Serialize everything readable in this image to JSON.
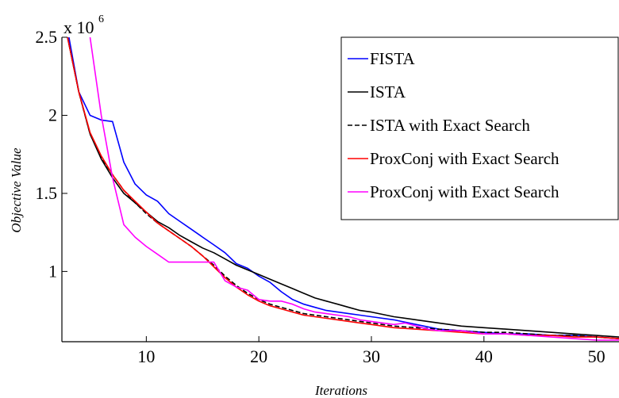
{
  "chart_data": {
    "type": "line",
    "xlabel": "Iterations",
    "ylabel": "Objective Value",
    "y_multiplier_base": "x 10",
    "y_multiplier_exp": "6",
    "xlim": [
      2.5,
      52
    ],
    "ylim": [
      0.55,
      2.5
    ],
    "xticks": [
      10,
      20,
      30,
      40,
      50
    ],
    "yticks": [
      1,
      1.5,
      2,
      2.5
    ],
    "ytick_labels": [
      "1",
      "1.5",
      "2",
      "2.5"
    ],
    "legend_position": "top-right",
    "series": [
      {
        "name": "FISTA",
        "color": "#0000ff",
        "dash": "",
        "points": [
          [
            3,
            2.55
          ],
          [
            4,
            2.15
          ],
          [
            5,
            2.0
          ],
          [
            6,
            1.97
          ],
          [
            7,
            1.96
          ],
          [
            8,
            1.7
          ],
          [
            9,
            1.56
          ],
          [
            10,
            1.49
          ],
          [
            11,
            1.45
          ],
          [
            12,
            1.37
          ],
          [
            13,
            1.32
          ],
          [
            14,
            1.27
          ],
          [
            15,
            1.22
          ],
          [
            16,
            1.17
          ],
          [
            17,
            1.12
          ],
          [
            18,
            1.05
          ],
          [
            19,
            1.02
          ],
          [
            20,
            0.97
          ],
          [
            21,
            0.93
          ],
          [
            22,
            0.87
          ],
          [
            23,
            0.82
          ],
          [
            24,
            0.79
          ],
          [
            25,
            0.77
          ],
          [
            26,
            0.75
          ],
          [
            27,
            0.74
          ],
          [
            28,
            0.73
          ],
          [
            29,
            0.72
          ],
          [
            30,
            0.71
          ],
          [
            32,
            0.69
          ],
          [
            34,
            0.66
          ],
          [
            36,
            0.63
          ],
          [
            38,
            0.62
          ],
          [
            40,
            0.61
          ],
          [
            42,
            0.6
          ],
          [
            44,
            0.6
          ],
          [
            46,
            0.59
          ],
          [
            48,
            0.59
          ],
          [
            50,
            0.58
          ],
          [
            52,
            0.57
          ]
        ]
      },
      {
        "name": "ISTA",
        "color": "#000000",
        "dash": "",
        "points": [
          [
            3,
            2.5
          ],
          [
            4,
            2.15
          ],
          [
            5,
            1.88
          ],
          [
            6,
            1.72
          ],
          [
            7,
            1.6
          ],
          [
            8,
            1.5
          ],
          [
            9,
            1.44
          ],
          [
            10,
            1.38
          ],
          [
            11,
            1.32
          ],
          [
            12,
            1.28
          ],
          [
            13,
            1.23
          ],
          [
            14,
            1.19
          ],
          [
            15,
            1.15
          ],
          [
            16,
            1.12
          ],
          [
            17,
            1.08
          ],
          [
            18,
            1.04
          ],
          [
            19,
            1.01
          ],
          [
            20,
            0.98
          ],
          [
            21,
            0.95
          ],
          [
            22,
            0.92
          ],
          [
            23,
            0.89
          ],
          [
            24,
            0.86
          ],
          [
            25,
            0.83
          ],
          [
            26,
            0.81
          ],
          [
            27,
            0.79
          ],
          [
            28,
            0.77
          ],
          [
            29,
            0.75
          ],
          [
            30,
            0.74
          ],
          [
            32,
            0.71
          ],
          [
            34,
            0.69
          ],
          [
            36,
            0.67
          ],
          [
            38,
            0.65
          ],
          [
            40,
            0.64
          ],
          [
            42,
            0.63
          ],
          [
            44,
            0.62
          ],
          [
            46,
            0.61
          ],
          [
            48,
            0.6
          ],
          [
            50,
            0.59
          ],
          [
            52,
            0.58
          ]
        ]
      },
      {
        "name": "ISTA with Exact Search",
        "color": "#000000",
        "dash": "6,3",
        "points": [
          [
            3,
            2.5
          ],
          [
            4,
            2.15
          ],
          [
            5,
            1.88
          ],
          [
            6,
            1.73
          ],
          [
            7,
            1.62
          ],
          [
            8,
            1.52
          ],
          [
            9,
            1.44
          ],
          [
            10,
            1.37
          ],
          [
            11,
            1.31
          ],
          [
            12,
            1.26
          ],
          [
            13,
            1.21
          ],
          [
            14,
            1.16
          ],
          [
            15,
            1.1
          ],
          [
            16,
            1.04
          ],
          [
            17,
            0.97
          ],
          [
            18,
            0.91
          ],
          [
            19,
            0.86
          ],
          [
            20,
            0.82
          ],
          [
            21,
            0.79
          ],
          [
            22,
            0.77
          ],
          [
            23,
            0.75
          ],
          [
            24,
            0.73
          ],
          [
            25,
            0.72
          ],
          [
            26,
            0.71
          ],
          [
            27,
            0.7
          ],
          [
            28,
            0.69
          ],
          [
            29,
            0.68
          ],
          [
            30,
            0.67
          ],
          [
            32,
            0.65
          ],
          [
            34,
            0.64
          ],
          [
            36,
            0.63
          ],
          [
            38,
            0.62
          ],
          [
            40,
            0.61
          ],
          [
            42,
            0.61
          ],
          [
            44,
            0.6
          ],
          [
            46,
            0.59
          ],
          [
            48,
            0.59
          ],
          [
            50,
            0.58
          ],
          [
            52,
            0.57
          ]
        ]
      },
      {
        "name": "ProxConj with Exact Search",
        "color": "#ff0000",
        "dash": "",
        "points": [
          [
            3,
            2.5
          ],
          [
            4,
            2.15
          ],
          [
            5,
            1.89
          ],
          [
            6,
            1.74
          ],
          [
            7,
            1.62
          ],
          [
            8,
            1.52
          ],
          [
            9,
            1.45
          ],
          [
            10,
            1.38
          ],
          [
            11,
            1.31
          ],
          [
            12,
            1.26
          ],
          [
            13,
            1.21
          ],
          [
            14,
            1.16
          ],
          [
            15,
            1.1
          ],
          [
            16,
            1.03
          ],
          [
            17,
            0.96
          ],
          [
            18,
            0.9
          ],
          [
            19,
            0.85
          ],
          [
            20,
            0.81
          ],
          [
            21,
            0.78
          ],
          [
            22,
            0.76
          ],
          [
            23,
            0.74
          ],
          [
            24,
            0.72
          ],
          [
            25,
            0.71
          ],
          [
            26,
            0.7
          ],
          [
            27,
            0.69
          ],
          [
            28,
            0.68
          ],
          [
            29,
            0.67
          ],
          [
            30,
            0.66
          ],
          [
            32,
            0.64
          ],
          [
            34,
            0.63
          ],
          [
            36,
            0.62
          ],
          [
            38,
            0.61
          ],
          [
            40,
            0.6
          ],
          [
            42,
            0.6
          ],
          [
            44,
            0.59
          ],
          [
            46,
            0.59
          ],
          [
            48,
            0.58
          ],
          [
            50,
            0.58
          ],
          [
            52,
            0.57
          ]
        ]
      },
      {
        "name": "ProxConj with Exact Search",
        "color": "#ff00ff",
        "dash": "",
        "points": [
          [
            5,
            2.5
          ],
          [
            6,
            2.0
          ],
          [
            7,
            1.6
          ],
          [
            8,
            1.3
          ],
          [
            9,
            1.22
          ],
          [
            10,
            1.16
          ],
          [
            11,
            1.11
          ],
          [
            12,
            1.06
          ],
          [
            13,
            1.06
          ],
          [
            14,
            1.06
          ],
          [
            15,
            1.06
          ],
          [
            16,
            1.06
          ],
          [
            17,
            0.94
          ],
          [
            18,
            0.9
          ],
          [
            19,
            0.88
          ],
          [
            20,
            0.82
          ],
          [
            21,
            0.81
          ],
          [
            22,
            0.81
          ],
          [
            23,
            0.79
          ],
          [
            24,
            0.76
          ],
          [
            25,
            0.74
          ],
          [
            26,
            0.73
          ],
          [
            27,
            0.72
          ],
          [
            28,
            0.71
          ],
          [
            29,
            0.69
          ],
          [
            30,
            0.68
          ],
          [
            32,
            0.66
          ],
          [
            33,
            0.67
          ],
          [
            34,
            0.65
          ],
          [
            35,
            0.63
          ],
          [
            36,
            0.62
          ],
          [
            38,
            0.62
          ],
          [
            40,
            0.6
          ],
          [
            42,
            0.6
          ],
          [
            44,
            0.59
          ],
          [
            46,
            0.58
          ],
          [
            48,
            0.57
          ],
          [
            50,
            0.56
          ],
          [
            52,
            0.56
          ]
        ]
      }
    ]
  }
}
